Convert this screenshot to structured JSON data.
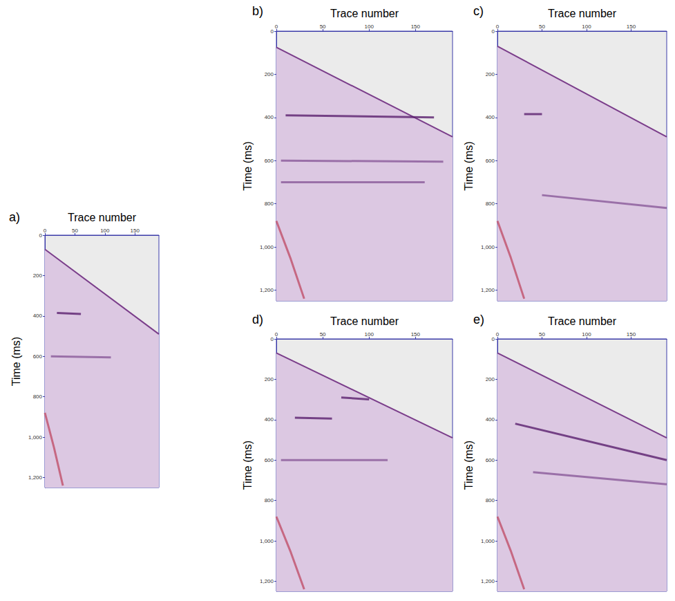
{
  "chart_data": [
    {
      "type": "line",
      "title": "a)",
      "xlabel": "Trace number",
      "ylabel": "Time (ms)",
      "xlim": [
        0,
        190
      ],
      "ylim": [
        0,
        1250
      ],
      "xticks": [
        0,
        50,
        100,
        150
      ],
      "yticks": [
        0,
        200,
        400,
        600,
        800,
        1000,
        1200
      ],
      "series": [
        {
          "type": "area",
          "color": "#7a3d8a",
          "x": [
            0,
            190
          ],
          "values": [
            70,
            490
          ]
        },
        {
          "type": "line",
          "color": "#5a1f6e",
          "x": [
            20,
            60
          ],
          "values": [
            385,
            390
          ]
        },
        {
          "type": "line",
          "color": "#8a5a9a",
          "x": [
            10,
            110
          ],
          "values": [
            600,
            605
          ]
        },
        {
          "type": "line",
          "color": "#c0506a",
          "x": [
            0,
            15,
            30
          ],
          "values": [
            880,
            1050,
            1240
          ]
        }
      ]
    },
    {
      "type": "line",
      "title": "b)",
      "xlabel": "Trace number",
      "ylabel": "Time (ms)",
      "xlim": [
        0,
        190
      ],
      "ylim": [
        0,
        1250
      ],
      "xticks": [
        0,
        50,
        100,
        150
      ],
      "yticks": [
        0,
        200,
        400,
        600,
        800,
        1000,
        1200
      ],
      "series": [
        {
          "type": "area",
          "color": "#7a3d8a",
          "x": [
            0,
            190
          ],
          "values": [
            75,
            490
          ]
        },
        {
          "type": "line",
          "color": "#5a1f6e",
          "x": [
            10,
            170
          ],
          "values": [
            390,
            400
          ]
        },
        {
          "type": "line",
          "color": "#8a5a9a",
          "x": [
            5,
            180
          ],
          "values": [
            600,
            605
          ]
        },
        {
          "type": "line",
          "color": "#8a5a9a",
          "x": [
            5,
            160
          ],
          "values": [
            700,
            700
          ]
        },
        {
          "type": "line",
          "color": "#c0506a",
          "x": [
            0,
            15,
            30
          ],
          "values": [
            880,
            1050,
            1240
          ]
        }
      ]
    },
    {
      "type": "line",
      "title": "c)",
      "xlabel": "Trace number",
      "ylabel": "Time (ms)",
      "xlim": [
        0,
        190
      ],
      "ylim": [
        0,
        1250
      ],
      "xticks": [
        0,
        50,
        100,
        150
      ],
      "yticks": [
        0,
        200,
        400,
        600,
        800,
        1000,
        1200
      ],
      "series": [
        {
          "type": "area",
          "color": "#7a3d8a",
          "x": [
            0,
            190
          ],
          "values": [
            70,
            490
          ]
        },
        {
          "type": "line",
          "color": "#5a1f6e",
          "x": [
            30,
            50
          ],
          "values": [
            385,
            385
          ]
        },
        {
          "type": "line",
          "color": "#8a5a9a",
          "x": [
            50,
            190
          ],
          "values": [
            760,
            820
          ]
        },
        {
          "type": "line",
          "color": "#c0506a",
          "x": [
            0,
            15,
            30
          ],
          "values": [
            880,
            1050,
            1240
          ]
        }
      ]
    },
    {
      "type": "line",
      "title": "d)",
      "xlabel": "Trace number",
      "ylabel": "Time (ms)",
      "xlim": [
        0,
        190
      ],
      "ylim": [
        0,
        1250
      ],
      "xticks": [
        0,
        50,
        100,
        150
      ],
      "yticks": [
        0,
        200,
        400,
        600,
        800,
        1000,
        1200
      ],
      "series": [
        {
          "type": "area",
          "color": "#7a3d8a",
          "x": [
            0,
            190
          ],
          "values": [
            70,
            490
          ]
        },
        {
          "type": "line",
          "color": "#5a1f6e",
          "x": [
            20,
            60
          ],
          "values": [
            390,
            395
          ]
        },
        {
          "type": "line",
          "color": "#5a1f6e",
          "x": [
            70,
            100
          ],
          "values": [
            290,
            300
          ]
        },
        {
          "type": "line",
          "color": "#8a5a9a",
          "x": [
            5,
            120
          ],
          "values": [
            600,
            600
          ]
        },
        {
          "type": "line",
          "color": "#c0506a",
          "x": [
            0,
            15,
            30
          ],
          "values": [
            880,
            1050,
            1240
          ]
        }
      ]
    },
    {
      "type": "line",
      "title": "e)",
      "xlabel": "Trace number",
      "ylabel": "Time (ms)",
      "xlim": [
        0,
        190
      ],
      "ylim": [
        0,
        1250
      ],
      "xticks": [
        0,
        50,
        100,
        150
      ],
      "yticks": [
        0,
        200,
        400,
        600,
        800,
        1000,
        1200
      ],
      "series": [
        {
          "type": "area",
          "color": "#7a3d8a",
          "x": [
            0,
            190
          ],
          "values": [
            70,
            490
          ]
        },
        {
          "type": "line",
          "color": "#5a1f6e",
          "x": [
            20,
            190
          ],
          "values": [
            420,
            600
          ]
        },
        {
          "type": "line",
          "color": "#8a5a9a",
          "x": [
            40,
            190
          ],
          "values": [
            660,
            720
          ]
        },
        {
          "type": "line",
          "color": "#c0506a",
          "x": [
            0,
            15,
            30
          ],
          "values": [
            880,
            1050,
            1240
          ]
        }
      ]
    }
  ]
}
